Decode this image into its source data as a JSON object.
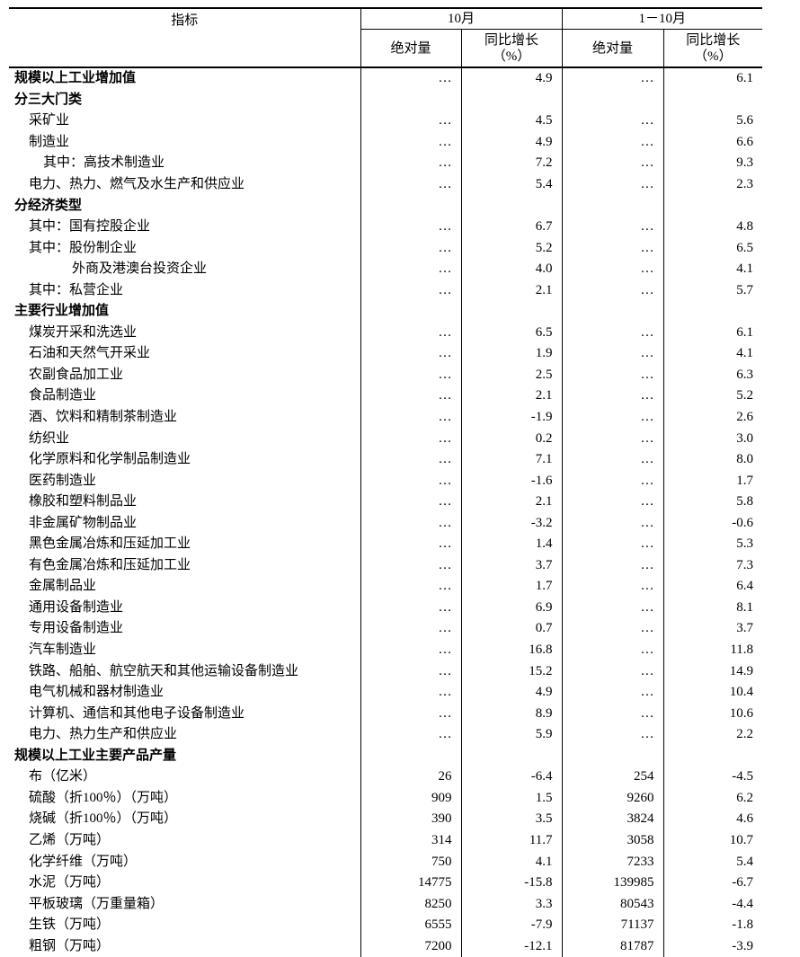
{
  "header": {
    "indicator": "指标",
    "period1": "10月",
    "period2": "1－10月",
    "absolute": "绝对量",
    "growth_line1": "同比增长",
    "growth_line2": "（%）"
  },
  "rows": [
    {
      "label": "规模以上工业增加值",
      "type": "cat",
      "v": [
        "…",
        "4.9",
        "…",
        "6.1"
      ]
    },
    {
      "label": "分三大门类",
      "type": "cat",
      "v": [
        "",
        "",
        "",
        ""
      ]
    },
    {
      "label": "采矿业",
      "indent": 1,
      "v": [
        "…",
        "4.5",
        "…",
        "5.6"
      ]
    },
    {
      "label": "制造业",
      "indent": 1,
      "v": [
        "…",
        "4.9",
        "…",
        "6.6"
      ]
    },
    {
      "label": "其中：高技术制造业",
      "indent": 2,
      "v": [
        "…",
        "7.2",
        "…",
        "9.3"
      ]
    },
    {
      "label": "电力、热力、燃气及水生产和供应业",
      "indent": 1,
      "v": [
        "…",
        "5.4",
        "…",
        "2.3"
      ]
    },
    {
      "label": "分经济类型",
      "type": "cat",
      "v": [
        "",
        "",
        "",
        ""
      ]
    },
    {
      "label": "其中：国有控股企业",
      "indent": 1,
      "v": [
        "…",
        "6.7",
        "…",
        "4.8"
      ]
    },
    {
      "label": "其中：股份制企业",
      "indent": 1,
      "v": [
        "…",
        "5.2",
        "…",
        "6.5"
      ]
    },
    {
      "label": "外商及港澳台投资企业",
      "indent": 3,
      "v": [
        "…",
        "4.0",
        "…",
        "4.1"
      ]
    },
    {
      "label": "其中：私营企业",
      "indent": 1,
      "v": [
        "…",
        "2.1",
        "…",
        "5.7"
      ]
    },
    {
      "label": "主要行业增加值",
      "type": "cat",
      "v": [
        "",
        "",
        "",
        ""
      ]
    },
    {
      "label": "煤炭开采和洗选业",
      "indent": 1,
      "v": [
        "…",
        "6.5",
        "…",
        "6.1"
      ]
    },
    {
      "label": "石油和天然气开采业",
      "indent": 1,
      "v": [
        "…",
        "1.9",
        "…",
        "4.1"
      ]
    },
    {
      "label": "农副食品加工业",
      "indent": 1,
      "v": [
        "…",
        "2.5",
        "…",
        "6.3"
      ]
    },
    {
      "label": "食品制造业",
      "indent": 1,
      "v": [
        "…",
        "2.1",
        "…",
        "5.2"
      ]
    },
    {
      "label": "酒、饮料和精制茶制造业",
      "indent": 1,
      "v": [
        "…",
        "-1.9",
        "…",
        "2.6"
      ]
    },
    {
      "label": "纺织业",
      "indent": 1,
      "v": [
        "…",
        "0.2",
        "…",
        "3.0"
      ]
    },
    {
      "label": "化学原料和化学制品制造业",
      "indent": 1,
      "v": [
        "…",
        "7.1",
        "…",
        "8.0"
      ]
    },
    {
      "label": "医药制造业",
      "indent": 1,
      "v": [
        "…",
        "-1.6",
        "…",
        "1.7"
      ]
    },
    {
      "label": "橡胶和塑料制品业",
      "indent": 1,
      "v": [
        "…",
        "2.1",
        "…",
        "5.8"
      ]
    },
    {
      "label": "非金属矿物制品业",
      "indent": 1,
      "v": [
        "…",
        "-3.2",
        "…",
        "-0.6"
      ]
    },
    {
      "label": "黑色金属冶炼和压延加工业",
      "indent": 1,
      "v": [
        "…",
        "1.4",
        "…",
        "5.3"
      ]
    },
    {
      "label": "有色金属冶炼和压延加工业",
      "indent": 1,
      "v": [
        "…",
        "3.7",
        "…",
        "7.3"
      ]
    },
    {
      "label": "金属制品业",
      "indent": 1,
      "v": [
        "…",
        "1.7",
        "…",
        "6.4"
      ]
    },
    {
      "label": "通用设备制造业",
      "indent": 1,
      "v": [
        "…",
        "6.9",
        "…",
        "8.1"
      ]
    },
    {
      "label": "专用设备制造业",
      "indent": 1,
      "v": [
        "…",
        "0.7",
        "…",
        "3.7"
      ]
    },
    {
      "label": "汽车制造业",
      "indent": 1,
      "v": [
        "…",
        "16.8",
        "…",
        "11.8"
      ]
    },
    {
      "label": "铁路、船舶、航空航天和其他运输设备制造业",
      "indent": 1,
      "v": [
        "…",
        "15.2",
        "…",
        "14.9"
      ]
    },
    {
      "label": "电气机械和器材制造业",
      "indent": 1,
      "v": [
        "…",
        "4.9",
        "…",
        "10.4"
      ]
    },
    {
      "label": "计算机、通信和其他电子设备制造业",
      "indent": 1,
      "v": [
        "…",
        "8.9",
        "…",
        "10.6"
      ]
    },
    {
      "label": "电力、热力生产和供应业",
      "indent": 1,
      "v": [
        "…",
        "5.9",
        "…",
        "2.2"
      ]
    },
    {
      "label": "规模以上工业主要产品产量",
      "type": "cat",
      "v": [
        "",
        "",
        "",
        ""
      ]
    },
    {
      "label": "布（亿米）",
      "indent": 1,
      "v": [
        "26",
        "-6.4",
        "254",
        "-4.5"
      ]
    },
    {
      "label": "硫酸（折100％）（万吨）",
      "indent": 1,
      "v": [
        "909",
        "1.5",
        "9260",
        "6.2"
      ]
    },
    {
      "label": "烧碱（折100％）（万吨）",
      "indent": 1,
      "v": [
        "390",
        "3.5",
        "3824",
        "4.6"
      ]
    },
    {
      "label": "乙烯（万吨）",
      "indent": 1,
      "v": [
        "314",
        "11.7",
        "3058",
        "10.7"
      ]
    },
    {
      "label": "化学纤维（万吨）",
      "indent": 1,
      "v": [
        "750",
        "4.1",
        "7233",
        "5.4"
      ]
    },
    {
      "label": "水泥（万吨）",
      "indent": 1,
      "v": [
        "14775",
        "-15.8",
        "139985",
        "-6.7"
      ]
    },
    {
      "label": "平板玻璃（万重量箱）",
      "indent": 1,
      "v": [
        "8250",
        "3.3",
        "80543",
        "-4.4"
      ]
    },
    {
      "label": "生铁（万吨）",
      "indent": 1,
      "v": [
        "6555",
        "-7.9",
        "71137",
        "-1.8"
      ]
    },
    {
      "label": "粗钢（万吨）",
      "indent": 1,
      "v": [
        "7200",
        "-12.1",
        "81787",
        "-3.9"
      ]
    }
  ]
}
